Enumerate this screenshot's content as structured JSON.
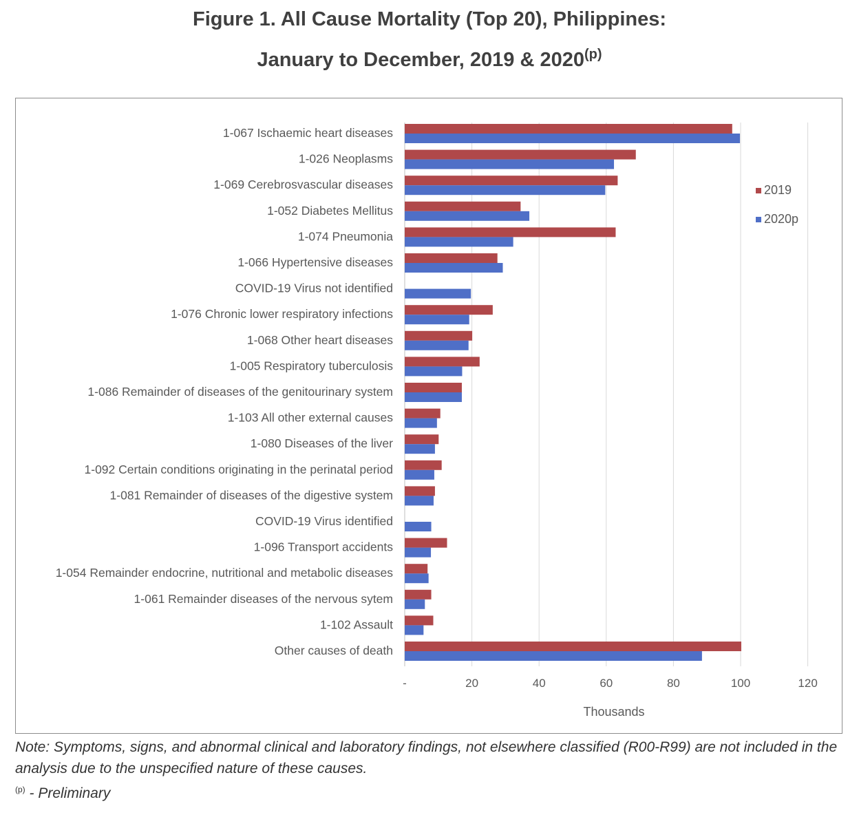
{
  "title_line1": "Figure 1.  All Cause Mortality (Top 20), Philippines:",
  "title_line2": "January to December, 2019 & 2020",
  "title_sup": "(p)",
  "note_text": "Note: Symptoms, signs, and abnormal clinical and laboratory findings, not elsewhere classified (R00-R99) are not included in the analysis due to the unspecified nature of these causes.",
  "footnote_sup": "(p)",
  "footnote_text": " - Preliminary",
  "chart_data": {
    "type": "bar",
    "orientation": "horizontal",
    "xlabel": "Thousands",
    "xlim": [
      0,
      120
    ],
    "xticks": [
      "-",
      "20",
      "40",
      "60",
      "80",
      "100",
      "120"
    ],
    "grid": true,
    "legend_position": "right",
    "categories": [
      "1-067 Ischaemic heart diseases",
      "1-026 Neoplasms",
      "1-069 Cerebrosvascular diseases",
      "1-052 Diabetes Mellitus",
      "1-074 Pneumonia",
      "1-066 Hypertensive diseases",
      "COVID-19 Virus not identified",
      "1-076 Chronic lower respiratory infections",
      "1-068 Other heart diseases",
      "1-005 Respiratory tuberculosis",
      "1-086 Remainder of diseases of the genitourinary system",
      "1-103 All other external causes",
      "1-080 Diseases of the liver",
      "1-092 Certain conditions originating in the perinatal period",
      "1-081 Remainder of diseases of the digestive system",
      "COVID-19 Virus identified",
      "1-096 Transport accidents",
      "1-054 Remainder endocrine, nutritional and metabolic diseases",
      "1-061 Remainder diseases of the nervous sytem",
      "1-102 Assault",
      "Other causes of death"
    ],
    "series": [
      {
        "name": "2019",
        "color": "#b0484a",
        "values": [
          97.5,
          68.8,
          63.4,
          34.5,
          62.8,
          27.6,
          0,
          26.2,
          20.1,
          22.3,
          17.0,
          10.6,
          10.1,
          11.0,
          9.0,
          0,
          12.6,
          6.8,
          7.9,
          8.5,
          100.2
        ]
      },
      {
        "name": "2020p",
        "color": "#4f6fc7",
        "values": [
          99.8,
          62.3,
          59.7,
          37.1,
          32.3,
          29.2,
          19.7,
          19.2,
          19.0,
          17.1,
          17.0,
          9.6,
          9.0,
          8.8,
          8.6,
          7.9,
          7.8,
          7.1,
          6.0,
          5.6,
          88.5
        ]
      }
    ]
  }
}
